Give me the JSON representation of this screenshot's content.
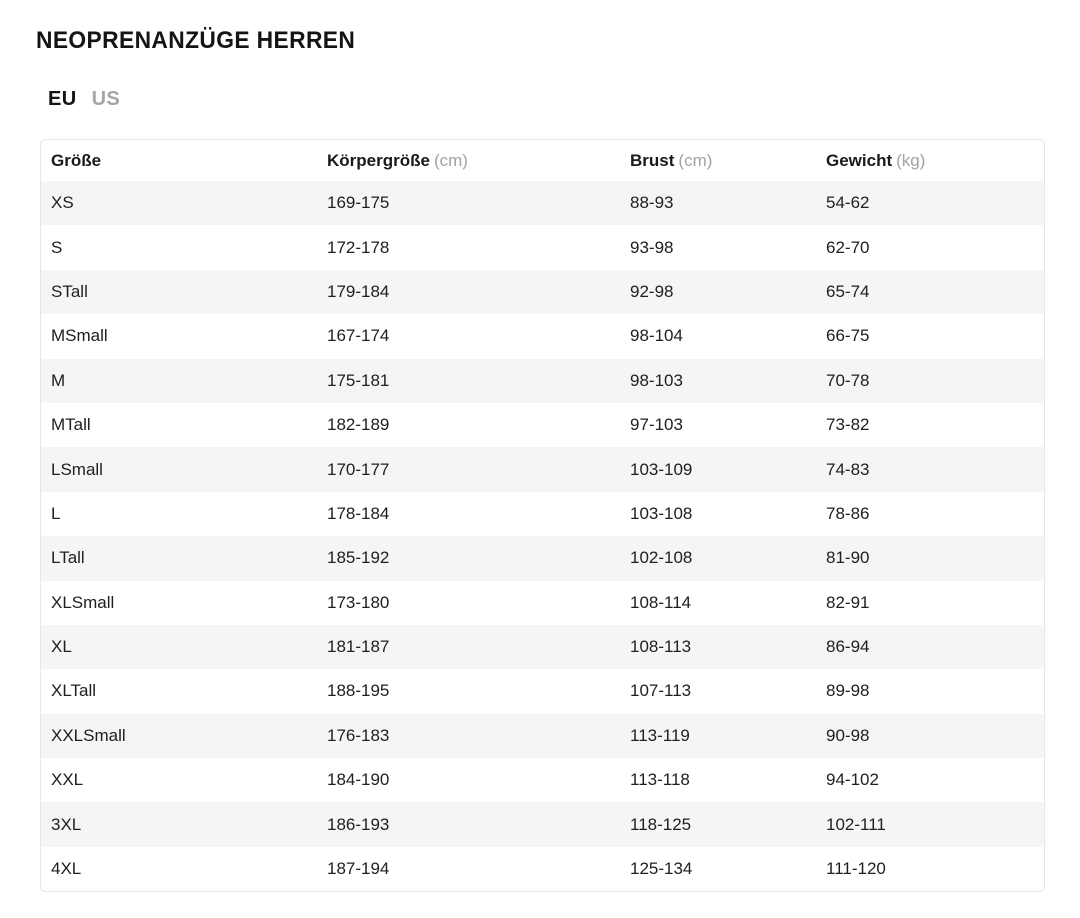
{
  "title": "NEOPRENANZÜGE HERREN",
  "tabs": [
    {
      "label": "EU",
      "active": true
    },
    {
      "label": "US",
      "active": false
    }
  ],
  "table": {
    "columns": [
      {
        "label": "Größe",
        "unit": ""
      },
      {
        "label": "Körpergröße",
        "unit": "(cm)"
      },
      {
        "label": "Brust",
        "unit": "(cm)"
      },
      {
        "label": "Gewicht",
        "unit": "(kg)"
      }
    ],
    "rows": [
      [
        "XS",
        "169-175",
        "88-93",
        "54-62"
      ],
      [
        "S",
        "172-178",
        "93-98",
        "62-70"
      ],
      [
        "STall",
        "179-184",
        "92-98",
        "65-74"
      ],
      [
        "MSmall",
        "167-174",
        "98-104",
        "66-75"
      ],
      [
        "M",
        "175-181",
        "98-103",
        "70-78"
      ],
      [
        "MTall",
        "182-189",
        "97-103",
        "73-82"
      ],
      [
        "LSmall",
        "170-177",
        "103-109",
        "74-83"
      ],
      [
        "L",
        "178-184",
        "103-108",
        "78-86"
      ],
      [
        "LTall",
        "185-192",
        "102-108",
        "81-90"
      ],
      [
        "XLSmall",
        "173-180",
        "108-114",
        "82-91"
      ],
      [
        "XL",
        "181-187",
        "108-113",
        "86-94"
      ],
      [
        "XLTall",
        "188-195",
        "107-113",
        "89-98"
      ],
      [
        "XXLSmall",
        "176-183",
        "113-119",
        "90-98"
      ],
      [
        "XXL",
        "184-190",
        "113-118",
        "94-102"
      ],
      [
        "3XL",
        "186-193",
        "118-125",
        "102-111"
      ],
      [
        "4XL",
        "187-194",
        "125-134",
        "111-120"
      ]
    ]
  },
  "colors": {
    "text": "#1a1a1a",
    "muted": "#a2a2a2",
    "stripe": "#f5f5f5",
    "border": "#e6e6e6"
  }
}
